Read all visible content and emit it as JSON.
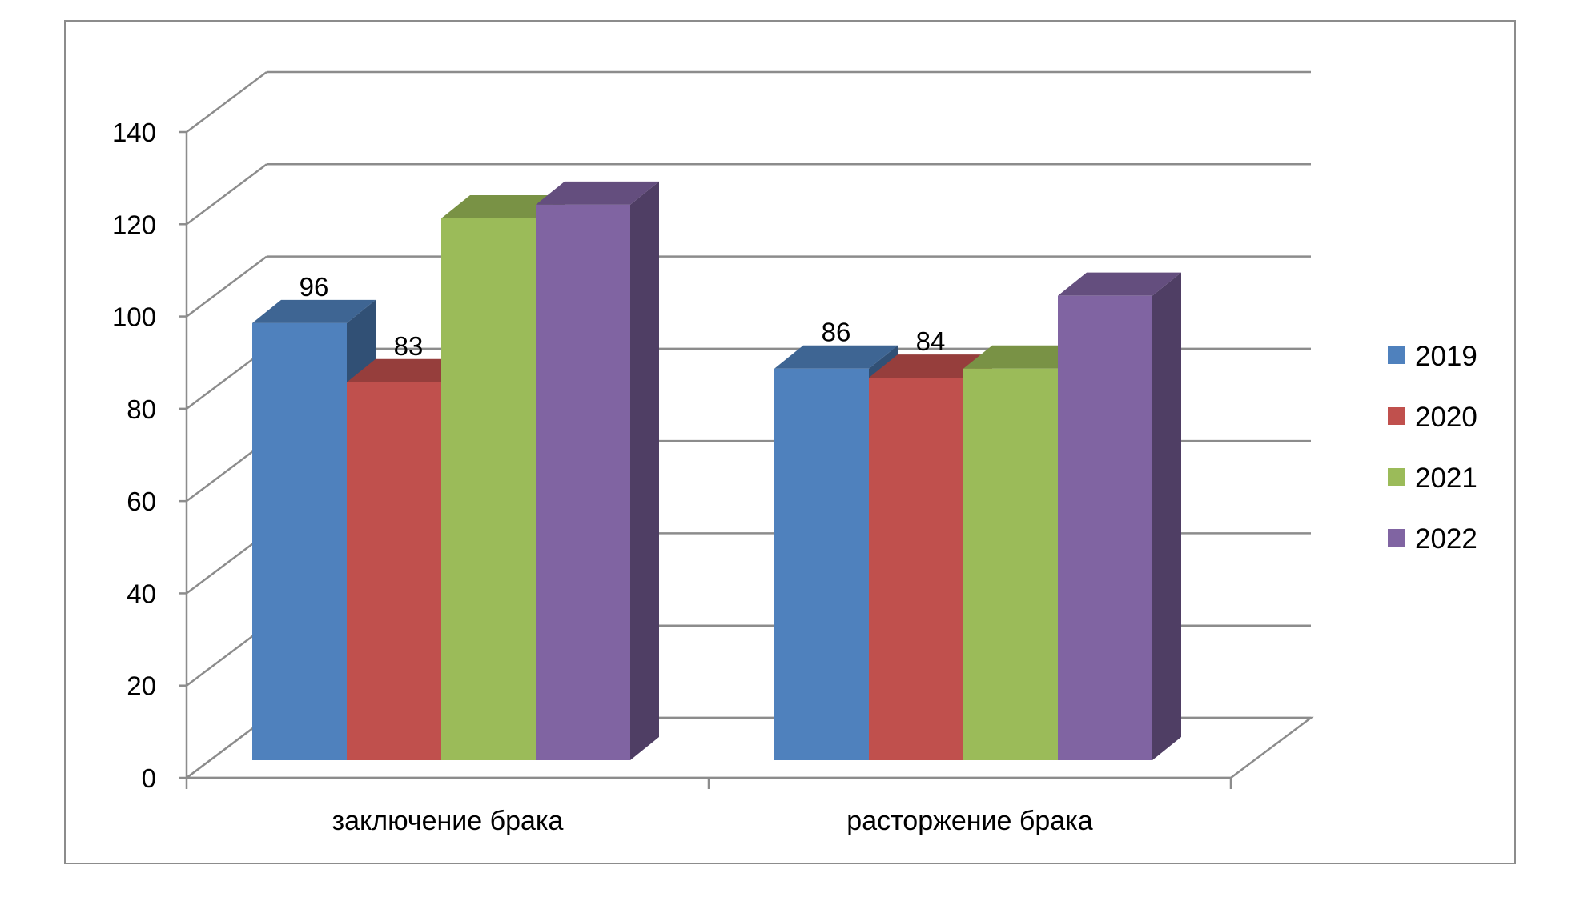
{
  "chart_data": {
    "type": "bar",
    "style": "3d-clustered-column",
    "categories": [
      "заключение брака",
      "расторжение брака"
    ],
    "series": [
      {
        "name": "2019",
        "color": "#4F81BD",
        "values": [
          96,
          86
        ],
        "labels": [
          "96",
          "86"
        ]
      },
      {
        "name": "2020",
        "color": "#C0504D",
        "values": [
          83,
          84
        ],
        "labels": [
          "83",
          "84"
        ]
      },
      {
        "name": "2021",
        "color": "#9BBB59",
        "values": [
          119,
          86
        ],
        "labels": [
          "",
          ""
        ]
      },
      {
        "name": "2022",
        "color": "#8064A2",
        "values": [
          122,
          102
        ],
        "labels": [
          "",
          ""
        ]
      }
    ],
    "ylim": [
      0,
      140
    ],
    "yticks": [
      "0",
      "20",
      "40",
      "60",
      "80",
      "100",
      "120",
      "140"
    ],
    "grid": true,
    "legend_position": "right"
  }
}
